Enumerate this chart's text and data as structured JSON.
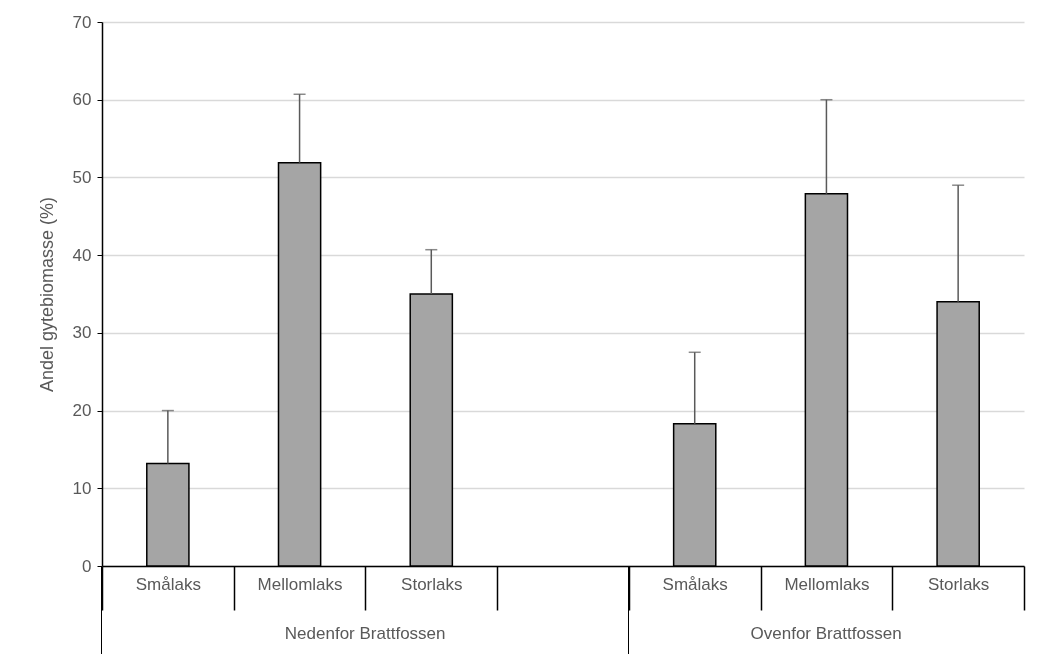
{
  "chart_data": {
    "type": "bar",
    "ylabel": "Andel gytebiomasse (%)",
    "categories": [
      "Smålaks",
      "Mellomlaks",
      "Storlaks",
      null,
      "Smålaks",
      "Mellomlaks",
      "Storlaks"
    ],
    "values": [
      13.2,
      51.9,
      35.0,
      null,
      18.3,
      47.9,
      34.0
    ],
    "errors": [
      [
        13.2,
        20.0
      ],
      [
        51.9,
        60.7
      ],
      [
        35.0,
        40.7
      ],
      null,
      [
        18.3,
        27.5
      ],
      [
        47.9,
        60.0
      ],
      [
        34.0,
        49.0
      ]
    ],
    "color": "#a5a5a5",
    "ylim": [
      0,
      70
    ],
    "yticks": [
      0,
      10,
      20,
      30,
      40,
      50,
      60,
      70
    ],
    "grid": "y",
    "annotations": [
      "Nedenfor Brattfossen",
      "Ovenfor Brattfossen"
    ]
  }
}
